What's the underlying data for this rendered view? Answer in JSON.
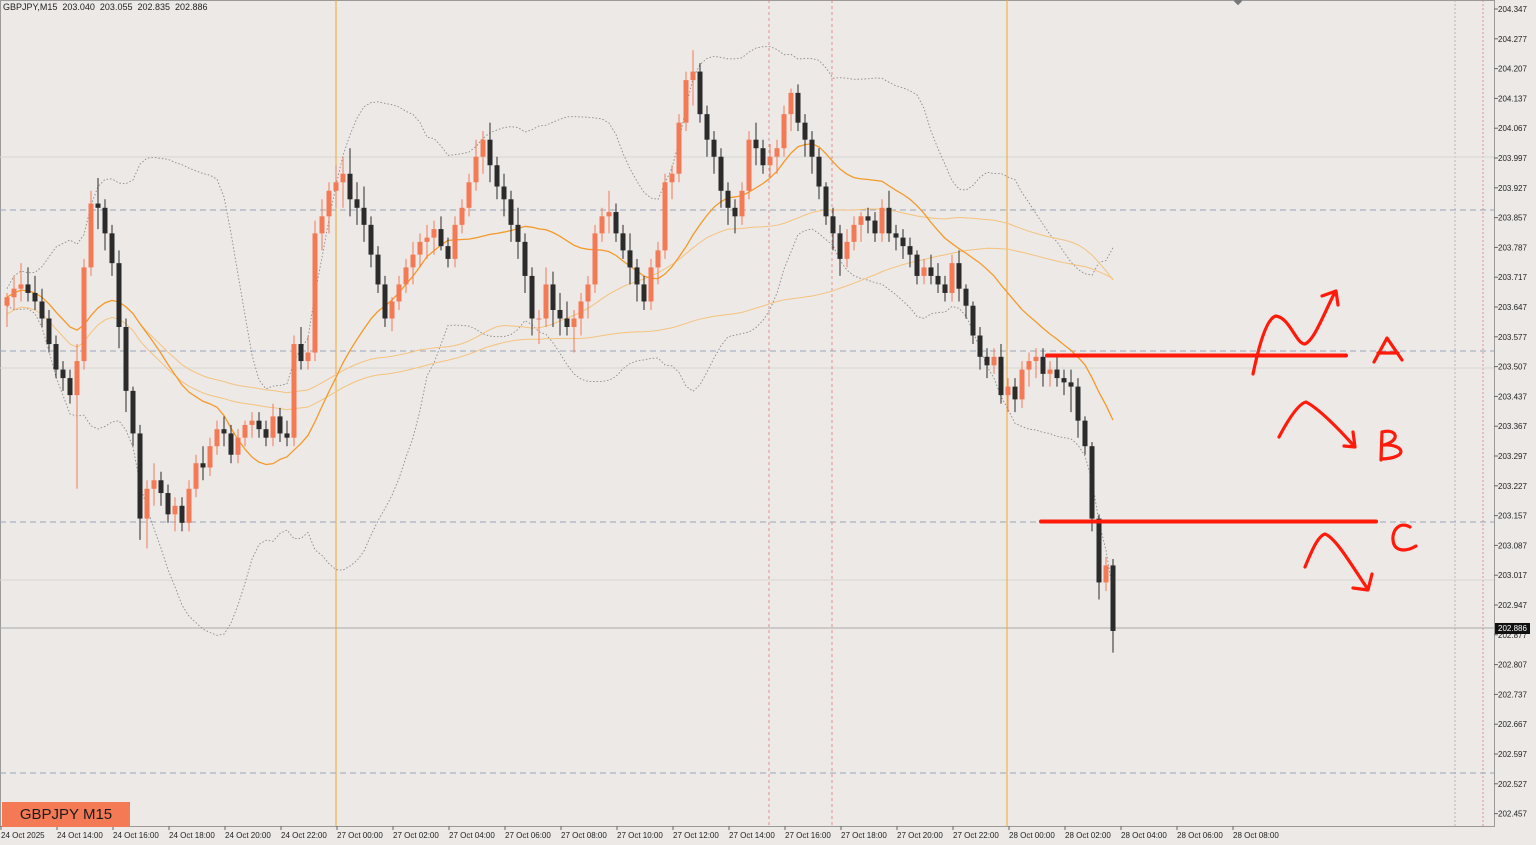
{
  "window": {
    "symbol": "GBPJPY,M15",
    "ohlc": [
      "203.040",
      "203.055",
      "202.835",
      "202.886"
    ]
  },
  "symbol_tag": "GBPJPY M15",
  "current_price_label": "202.886",
  "colors": {
    "background": "#ece9e7",
    "bull": "#f47a55",
    "bear": "#2b2b2b",
    "ma_fast": "#f39a2a",
    "ma_slow": "#f6c27c",
    "bands": "#8a8a8a",
    "annotation": "#ff1a0a",
    "session_line": "#f4a62a",
    "grid_dashed": "#9aa7b8"
  },
  "chart_data": {
    "type": "candlestick",
    "ylim": [
      202.42,
      204.36
    ],
    "y_ticks": [
      "204.347",
      "204.277",
      "204.207",
      "204.137",
      "204.067",
      "203.997",
      "203.927",
      "203.857",
      "203.787",
      "203.717",
      "203.647",
      "203.577",
      "203.507",
      "203.437",
      "203.367",
      "203.297",
      "203.227",
      "203.157",
      "203.087",
      "203.017",
      "202.947",
      "202.877",
      "202.807",
      "202.737",
      "202.667",
      "202.597",
      "202.527",
      "202.457"
    ],
    "x_ticks": [
      "24 Oct 2025",
      "24 Oct 14:00",
      "24 Oct 16:00",
      "24 Oct 18:00",
      "24 Oct 20:00",
      "24 Oct 22:00",
      "27 Oct 00:00",
      "27 Oct 02:00",
      "27 Oct 04:00",
      "27 Oct 06:00",
      "27 Oct 08:00",
      "27 Oct 10:00",
      "27 Oct 12:00",
      "27 Oct 14:00",
      "27 Oct 16:00",
      "27 Oct 18:00",
      "27 Oct 20:00",
      "27 Oct 22:00",
      "28 Oct 00:00",
      "28 Oct 02:00",
      "28 Oct 04:00",
      "28 Oct 06:00",
      "28 Oct 08:00"
    ],
    "key_level_lines": [
      203.533,
      203.143
    ],
    "candles": [
      [
        203.65,
        203.68,
        203.6,
        203.67
      ],
      [
        203.67,
        203.72,
        203.64,
        203.69
      ],
      [
        203.69,
        203.75,
        203.66,
        203.7
      ],
      [
        203.7,
        203.74,
        203.66,
        203.68
      ],
      [
        203.68,
        203.72,
        203.64,
        203.66
      ],
      [
        203.66,
        203.69,
        203.6,
        203.62
      ],
      [
        203.62,
        203.64,
        203.54,
        203.56
      ],
      [
        203.56,
        203.58,
        203.48,
        203.5
      ],
      [
        203.5,
        203.52,
        203.45,
        203.48
      ],
      [
        203.48,
        203.5,
        203.42,
        203.44
      ],
      [
        203.44,
        203.56,
        203.22,
        203.52
      ],
      [
        203.52,
        203.76,
        203.5,
        203.74
      ],
      [
        203.74,
        203.92,
        203.72,
        203.89
      ],
      [
        203.89,
        203.95,
        203.83,
        203.88
      ],
      [
        203.88,
        203.9,
        203.78,
        203.82
      ],
      [
        203.82,
        203.84,
        203.72,
        203.75
      ],
      [
        203.75,
        203.78,
        203.55,
        203.6
      ],
      [
        203.6,
        203.62,
        203.4,
        203.45
      ],
      [
        203.45,
        203.46,
        203.32,
        203.35
      ],
      [
        203.35,
        203.37,
        203.1,
        203.15
      ],
      [
        203.15,
        203.24,
        203.08,
        203.22
      ],
      [
        203.22,
        203.28,
        203.18,
        203.24
      ],
      [
        203.24,
        203.26,
        203.18,
        203.21
      ],
      [
        203.21,
        203.23,
        203.14,
        203.16
      ],
      [
        203.16,
        203.2,
        203.12,
        203.18
      ],
      [
        203.18,
        203.2,
        203.12,
        203.14
      ],
      [
        203.14,
        203.24,
        203.12,
        203.22
      ],
      [
        203.22,
        203.3,
        203.2,
        203.28
      ],
      [
        203.28,
        203.32,
        203.24,
        203.27
      ],
      [
        203.27,
        203.34,
        203.25,
        203.32
      ],
      [
        203.32,
        203.38,
        203.3,
        203.36
      ],
      [
        203.36,
        203.39,
        203.32,
        203.35
      ],
      [
        203.35,
        203.37,
        203.28,
        203.3
      ],
      [
        203.3,
        203.36,
        203.28,
        203.34
      ],
      [
        203.34,
        203.38,
        203.32,
        203.37
      ],
      [
        203.37,
        203.4,
        203.34,
        203.38
      ],
      [
        203.38,
        203.4,
        203.34,
        203.36
      ],
      [
        203.36,
        203.38,
        203.32,
        203.34
      ],
      [
        203.34,
        203.42,
        203.32,
        203.39
      ],
      [
        203.39,
        203.41,
        203.33,
        203.35
      ],
      [
        203.35,
        203.38,
        203.32,
        203.34
      ],
      [
        203.34,
        203.58,
        203.32,
        203.56
      ],
      [
        203.56,
        203.6,
        203.5,
        203.52
      ],
      [
        203.52,
        203.58,
        203.5,
        203.54
      ],
      [
        203.54,
        203.85,
        203.52,
        203.82
      ],
      [
        203.82,
        203.9,
        203.78,
        203.86
      ],
      [
        203.86,
        203.94,
        203.82,
        203.92
      ],
      [
        203.92,
        203.98,
        203.88,
        203.94
      ],
      [
        203.94,
        204.0,
        203.88,
        203.96
      ],
      [
        203.96,
        204.02,
        203.86,
        203.9
      ],
      [
        203.9,
        203.94,
        203.84,
        203.88
      ],
      [
        203.88,
        203.93,
        203.8,
        203.84
      ],
      [
        203.84,
        203.86,
        203.74,
        203.77
      ],
      [
        203.77,
        203.79,
        203.68,
        203.7
      ],
      [
        203.7,
        203.72,
        203.6,
        203.62
      ],
      [
        203.62,
        203.67,
        203.59,
        203.66
      ],
      [
        203.66,
        203.72,
        203.64,
        203.7
      ],
      [
        203.7,
        203.76,
        203.68,
        203.74
      ],
      [
        203.74,
        203.8,
        203.7,
        203.77
      ],
      [
        203.77,
        203.82,
        203.74,
        203.8
      ],
      [
        203.8,
        203.84,
        203.76,
        203.81
      ],
      [
        203.81,
        203.85,
        203.77,
        203.83
      ],
      [
        203.83,
        203.86,
        203.78,
        203.79
      ],
      [
        203.79,
        203.81,
        203.74,
        203.76
      ],
      [
        203.76,
        203.86,
        203.74,
        203.84
      ],
      [
        203.84,
        203.9,
        203.82,
        203.88
      ],
      [
        203.88,
        203.96,
        203.86,
        203.94
      ],
      [
        203.94,
        204.04,
        203.92,
        204.0
      ],
      [
        204.0,
        204.06,
        203.96,
        204.04
      ],
      [
        204.04,
        204.08,
        203.94,
        203.98
      ],
      [
        203.98,
        204.0,
        203.9,
        203.93
      ],
      [
        203.93,
        203.96,
        203.86,
        203.9
      ],
      [
        203.9,
        203.92,
        203.8,
        203.84
      ],
      [
        203.84,
        203.88,
        203.76,
        203.8
      ],
      [
        203.8,
        203.82,
        203.68,
        203.72
      ],
      [
        203.72,
        203.74,
        203.58,
        203.62
      ],
      [
        203.62,
        203.64,
        203.56,
        203.62
      ],
      [
        203.62,
        203.74,
        203.6,
        203.7
      ],
      [
        203.7,
        203.73,
        203.6,
        203.64
      ],
      [
        203.64,
        203.68,
        203.58,
        203.62
      ],
      [
        203.62,
        203.66,
        203.58,
        203.6
      ],
      [
        203.6,
        203.64,
        203.54,
        203.62
      ],
      [
        203.62,
        203.68,
        203.58,
        203.66
      ],
      [
        203.66,
        203.72,
        203.62,
        203.7
      ],
      [
        203.7,
        203.84,
        203.68,
        203.82
      ],
      [
        203.82,
        203.88,
        203.8,
        203.86
      ],
      [
        203.86,
        203.92,
        203.82,
        203.87
      ],
      [
        203.87,
        203.89,
        203.8,
        203.82
      ],
      [
        203.82,
        203.84,
        203.76,
        203.78
      ],
      [
        203.78,
        203.82,
        203.7,
        203.74
      ],
      [
        203.74,
        203.76,
        203.66,
        203.7
      ],
      [
        203.7,
        203.72,
        203.64,
        203.66
      ],
      [
        203.66,
        203.76,
        203.64,
        203.74
      ],
      [
        203.74,
        203.8,
        203.7,
        203.78
      ],
      [
        203.78,
        203.96,
        203.76,
        203.94
      ],
      [
        203.94,
        203.98,
        203.9,
        203.96
      ],
      [
        203.96,
        204.1,
        203.94,
        204.08
      ],
      [
        204.08,
        204.2,
        204.06,
        204.18
      ],
      [
        204.18,
        204.25,
        204.12,
        204.2
      ],
      [
        204.2,
        204.22,
        204.08,
        204.1
      ],
      [
        204.1,
        204.12,
        204.0,
        204.04
      ],
      [
        204.04,
        204.06,
        203.96,
        204.0
      ],
      [
        204.0,
        204.02,
        203.88,
        203.92
      ],
      [
        203.92,
        203.94,
        203.84,
        203.88
      ],
      [
        203.88,
        203.9,
        203.82,
        203.86
      ],
      [
        203.86,
        203.94,
        203.84,
        203.92
      ],
      [
        203.92,
        204.06,
        203.9,
        204.04
      ],
      [
        204.04,
        204.08,
        203.98,
        204.02
      ],
      [
        204.02,
        204.04,
        203.96,
        203.98
      ],
      [
        203.98,
        204.03,
        203.95,
        204.0
      ],
      [
        204.0,
        204.04,
        203.96,
        204.02
      ],
      [
        204.02,
        204.12,
        204.0,
        204.1
      ],
      [
        204.1,
        204.16,
        204.06,
        204.15
      ],
      [
        204.15,
        204.17,
        204.06,
        204.08
      ],
      [
        204.08,
        204.1,
        204.0,
        204.04
      ],
      [
        204.04,
        204.06,
        203.96,
        204.0
      ],
      [
        204.0,
        204.02,
        203.9,
        203.93
      ],
      [
        203.93,
        203.94,
        203.84,
        203.86
      ],
      [
        203.86,
        203.88,
        203.78,
        203.82
      ],
      [
        203.82,
        203.84,
        203.72,
        203.76
      ],
      [
        203.76,
        203.83,
        203.74,
        203.8
      ],
      [
        203.8,
        203.86,
        203.78,
        203.84
      ],
      [
        203.84,
        203.87,
        203.8,
        203.86
      ],
      [
        203.86,
        203.88,
        203.82,
        203.85
      ],
      [
        203.85,
        203.87,
        203.8,
        203.82
      ],
      [
        203.82,
        203.9,
        203.8,
        203.88
      ],
      [
        203.88,
        203.92,
        203.8,
        203.82
      ],
      [
        203.82,
        203.84,
        203.78,
        203.81
      ],
      [
        203.81,
        203.83,
        203.76,
        203.79
      ],
      [
        203.79,
        203.81,
        203.74,
        203.77
      ],
      [
        203.77,
        203.78,
        203.7,
        203.72
      ],
      [
        203.72,
        203.76,
        203.7,
        203.74
      ],
      [
        203.74,
        203.77,
        203.7,
        203.72
      ],
      [
        203.72,
        203.75,
        203.68,
        203.7
      ],
      [
        203.7,
        203.72,
        203.66,
        203.68
      ],
      [
        203.68,
        203.77,
        203.66,
        203.75
      ],
      [
        203.75,
        203.78,
        203.66,
        203.69
      ],
      [
        203.69,
        203.7,
        203.62,
        203.65
      ],
      [
        203.65,
        203.66,
        203.56,
        203.58
      ],
      [
        203.58,
        203.6,
        203.5,
        203.53
      ],
      [
        203.53,
        203.55,
        203.48,
        203.51
      ],
      [
        203.51,
        203.55,
        203.49,
        203.53
      ],
      [
        203.53,
        203.56,
        203.42,
        203.44
      ],
      [
        203.44,
        203.48,
        203.4,
        203.46
      ],
      [
        203.46,
        203.48,
        203.4,
        203.43
      ],
      [
        203.43,
        203.52,
        203.41,
        203.5
      ],
      [
        203.5,
        203.54,
        203.46,
        203.52
      ],
      [
        203.52,
        203.55,
        203.48,
        203.53
      ],
      [
        203.53,
        203.55,
        203.46,
        203.49
      ],
      [
        203.49,
        203.52,
        203.46,
        203.5
      ],
      [
        203.5,
        203.53,
        203.46,
        203.48
      ],
      [
        203.48,
        203.5,
        203.44,
        203.47
      ],
      [
        203.47,
        203.5,
        203.4,
        203.46
      ],
      [
        203.46,
        203.48,
        203.34,
        203.38
      ],
      [
        203.38,
        203.39,
        203.3,
        203.32
      ],
      [
        203.32,
        203.33,
        203.12,
        203.15
      ],
      [
        203.15,
        203.16,
        202.96,
        203.0
      ],
      [
        203.0,
        203.06,
        202.98,
        203.04
      ],
      [
        203.04,
        203.055,
        202.835,
        202.886
      ]
    ]
  }
}
